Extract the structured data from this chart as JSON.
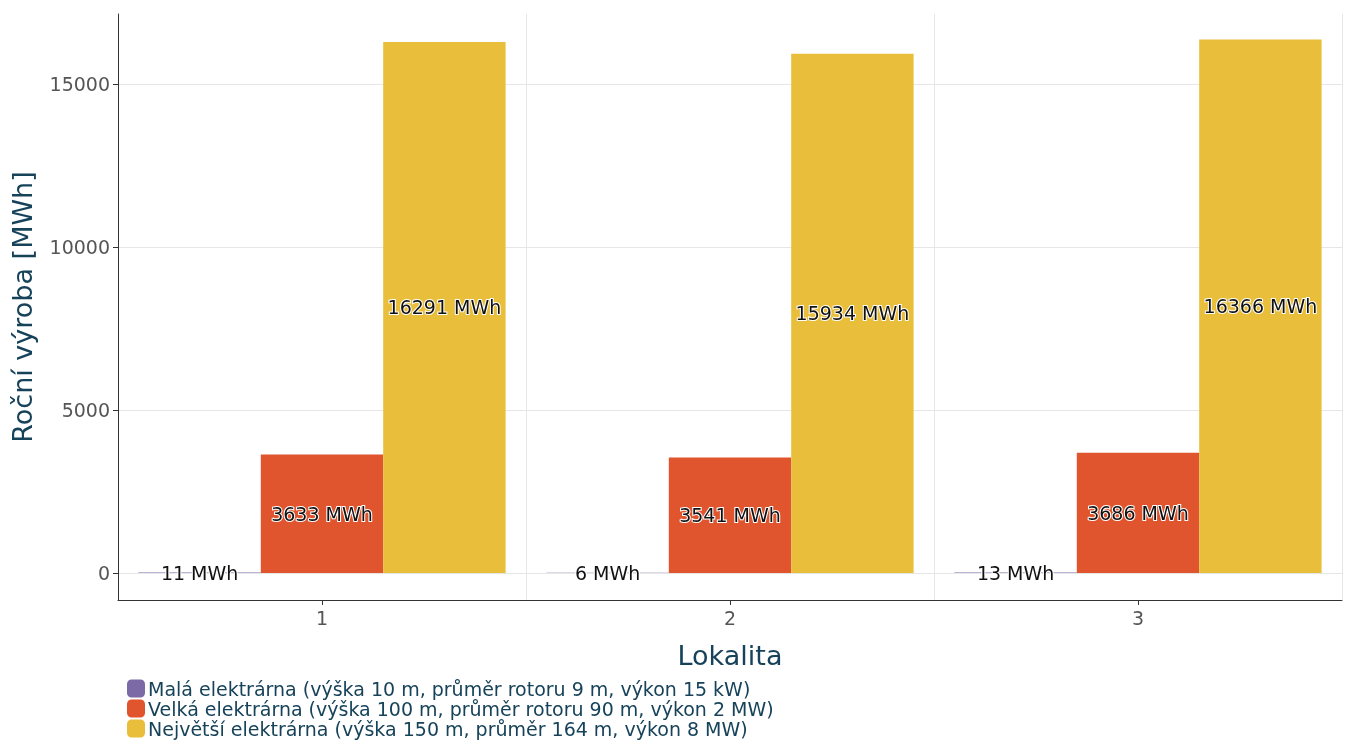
{
  "chart_data": {
    "type": "bar",
    "xlabel": "Lokalita",
    "ylabel": "Roční výroba [MWh]",
    "categories": [
      "1",
      "2",
      "3"
    ],
    "series": [
      {
        "name": "Malá elektrárna (výška 10 m, průměr rotoru 9 m, výkon 15 kW)",
        "color": "#7b6aa6",
        "values": [
          11,
          6,
          13
        ],
        "value_labels": [
          "11 MWh",
          "6 MWh",
          "13 MWh"
        ]
      },
      {
        "name": "Velká elektrárna (výška 100 m, průměr rotoru 90 m, výkon 2 MW)",
        "color": "#e0552e",
        "values": [
          3633,
          3541,
          3686
        ],
        "value_labels": [
          "3633 MWh",
          "3541 MWh",
          "3686 MWh"
        ]
      },
      {
        "name": "Největší elektrárna (výška 150 m, průměr 164 m, výkon 8 MW)",
        "color": "#e9be3a",
        "values": [
          16291,
          15934,
          16366
        ],
        "value_labels": [
          "16291 MWh",
          "15934 MWh",
          "16366 MWh"
        ]
      }
    ],
    "ylim": [
      -830,
      17150
    ],
    "yticks": [
      0,
      5000,
      10000,
      15000
    ],
    "grid": true,
    "legend": "bottom left"
  }
}
